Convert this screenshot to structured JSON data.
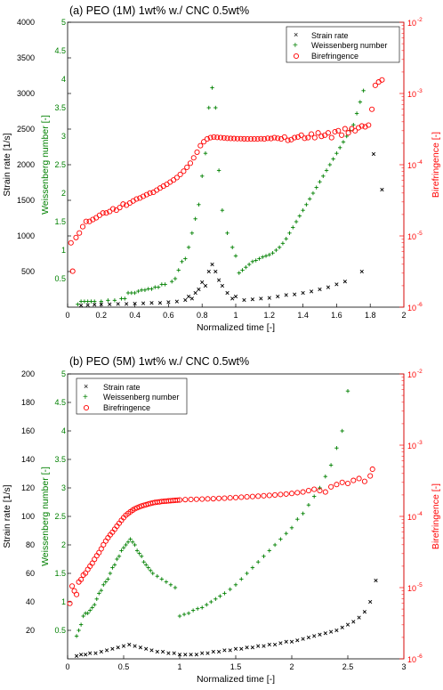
{
  "chart_data": [
    {
      "type": "scatter",
      "title": "(a) PEO (1M) 1wt% w./ CNC 0.5wt%",
      "xlabel": "Normalized time [-]",
      "ylabel_left": "Strain rate [1/s]",
      "ylabel_mid": "Weissenberg number [-]",
      "ylabel_right": "Birefringence [-]",
      "xlim": [
        0,
        2
      ],
      "ylim_left": [
        0,
        4000
      ],
      "ylim_mid": [
        0,
        5
      ],
      "ylim_right": [
        1e-06,
        0.01
      ],
      "right_scale": "log",
      "xticks": [
        "0",
        "0.2",
        "0.4",
        "0.6",
        "0.8",
        "1",
        "1.2",
        "1.4",
        "1.6",
        "1.8",
        "2"
      ],
      "yticks_left": [
        "500",
        "1000",
        "1500",
        "2000",
        "2500",
        "3000",
        "3500",
        "4000"
      ],
      "yticks_mid": [
        "0.5",
        "1",
        "1.5",
        "2",
        "2.5",
        "3",
        "3.5",
        "4",
        "4.5",
        "5"
      ],
      "yticks_right": [
        "10",
        "10",
        "10",
        "10",
        "10"
      ],
      "yticks_right_exp": [
        "-6",
        "-5",
        "-4",
        "-3",
        "-2"
      ],
      "legend_position": "top-right",
      "legend": [
        "Strain rate",
        "Weissenberg number",
        "Birefringence"
      ],
      "colors": {
        "strain": "#000000",
        "weissenberg": "#008000",
        "birefringence": "#ff0000"
      },
      "series": [
        {
          "name": "Strain rate",
          "marker": "x",
          "axis": "left",
          "x": [
            0.08,
            0.12,
            0.16,
            0.2,
            0.25,
            0.3,
            0.35,
            0.4,
            0.45,
            0.5,
            0.55,
            0.6,
            0.65,
            0.7,
            0.72,
            0.74,
            0.76,
            0.78,
            0.8,
            0.82,
            0.84,
            0.86,
            0.88,
            0.9,
            0.92,
            0.95,
            0.98,
            1.0,
            1.05,
            1.1,
            1.15,
            1.2,
            1.25,
            1.3,
            1.35,
            1.4,
            1.45,
            1.5,
            1.55,
            1.6,
            1.65,
            1.75,
            1.82,
            1.87
          ],
          "y": [
            25,
            30,
            35,
            40,
            40,
            45,
            45,
            50,
            55,
            60,
            60,
            70,
            80,
            100,
            150,
            120,
            200,
            250,
            350,
            300,
            500,
            600,
            500,
            380,
            300,
            200,
            120,
            150,
            100,
            110,
            120,
            130,
            150,
            170,
            180,
            200,
            220,
            250,
            280,
            320,
            360,
            500,
            2150,
            1650
          ]
        },
        {
          "name": "Weissenberg number",
          "marker": "+",
          "axis": "mid",
          "x": [
            0.06,
            0.08,
            0.1,
            0.12,
            0.14,
            0.16,
            0.2,
            0.24,
            0.28,
            0.32,
            0.34,
            0.36,
            0.38,
            0.4,
            0.42,
            0.44,
            0.46,
            0.48,
            0.5,
            0.52,
            0.54,
            0.56,
            0.58,
            0.62,
            0.64,
            0.66,
            0.68,
            0.7,
            0.72,
            0.74,
            0.76,
            0.78,
            0.8,
            0.82,
            0.84,
            0.86,
            0.88,
            0.9,
            0.92,
            0.95,
            0.98,
            1.0,
            1.02,
            1.04,
            1.06,
            1.08,
            1.1,
            1.12,
            1.14,
            1.16,
            1.18,
            1.2,
            1.22,
            1.24,
            1.26,
            1.28,
            1.3,
            1.32,
            1.34,
            1.36,
            1.38,
            1.4,
            1.42,
            1.44,
            1.46,
            1.48,
            1.5,
            1.52,
            1.54,
            1.56,
            1.58,
            1.6,
            1.62,
            1.64,
            1.66,
            1.68,
            1.7,
            1.72,
            1.74,
            1.76
          ],
          "y": [
            0.05,
            0.1,
            0.1,
            0.1,
            0.1,
            0.1,
            0.1,
            0.12,
            0.12,
            0.15,
            0.15,
            0.25,
            0.25,
            0.25,
            0.28,
            0.3,
            0.3,
            0.32,
            0.32,
            0.35,
            0.35,
            0.4,
            0.4,
            0.45,
            0.5,
            0.65,
            0.8,
            0.85,
            1.05,
            1.3,
            1.55,
            1.8,
            2.3,
            2.7,
            3.5,
            3.85,
            3.5,
            2.4,
            1.7,
            1.3,
            1.05,
            0.9,
            0.6,
            0.65,
            0.7,
            0.75,
            0.8,
            0.82,
            0.85,
            0.88,
            0.9,
            0.92,
            0.95,
            1.0,
            1.05,
            1.12,
            1.2,
            1.3,
            1.4,
            1.5,
            1.6,
            1.7,
            1.8,
            1.9,
            2.0,
            2.1,
            2.2,
            2.3,
            2.4,
            2.5,
            2.6,
            2.7,
            2.8,
            2.9,
            3.0,
            3.1,
            3.2,
            3.4,
            3.6,
            3.8
          ]
        },
        {
          "name": "Birefringence",
          "marker": "o",
          "axis": "right",
          "x": [
            0.02,
            0.03,
            0.05,
            0.07,
            0.09,
            0.11,
            0.13,
            0.15,
            0.17,
            0.19,
            0.21,
            0.23,
            0.25,
            0.27,
            0.29,
            0.31,
            0.33,
            0.35,
            0.37,
            0.39,
            0.41,
            0.43,
            0.45,
            0.47,
            0.49,
            0.51,
            0.53,
            0.55,
            0.57,
            0.59,
            0.61,
            0.63,
            0.65,
            0.67,
            0.69,
            0.71,
            0.73,
            0.75,
            0.77,
            0.79,
            0.81,
            0.83,
            0.85,
            0.87,
            0.89,
            0.91,
            0.93,
            0.95,
            0.97,
            0.99,
            1.01,
            1.03,
            1.05,
            1.07,
            1.09,
            1.11,
            1.13,
            1.15,
            1.17,
            1.19,
            1.21,
            1.23,
            1.25,
            1.27,
            1.29,
            1.31,
            1.33,
            1.35,
            1.37,
            1.39,
            1.41,
            1.43,
            1.45,
            1.47,
            1.49,
            1.51,
            1.53,
            1.55,
            1.57,
            1.59,
            1.61,
            1.63,
            1.65,
            1.67,
            1.69,
            1.71,
            1.73,
            1.75,
            1.77,
            1.79,
            1.81,
            1.83,
            1.85,
            1.87
          ],
          "y": [
            8e-06,
            3.2e-06,
            9.5e-06,
            1.1e-05,
            1.35e-05,
            1.6e-05,
            1.6e-05,
            1.7e-05,
            1.8e-05,
            1.95e-05,
            2.1e-05,
            2.1e-05,
            2.2e-05,
            2.4e-05,
            2.3e-05,
            2.5e-05,
            2.8e-05,
            2.7e-05,
            2.9e-05,
            3.1e-05,
            3.3e-05,
            3.4e-05,
            3.6e-05,
            3.8e-05,
            4e-05,
            4.1e-05,
            4.4e-05,
            4.7e-05,
            5e-05,
            5.3e-05,
            5.7e-05,
            6.1e-05,
            6.6e-05,
            7.3e-05,
            8.1e-05,
            9.2e-05,
            0.000105,
            0.000125,
            0.00015,
            0.000185,
            0.00021,
            0.00023,
            0.00024,
            0.000245,
            0.000242,
            0.00024,
            0.000238,
            0.000235,
            0.000234,
            0.000233,
            0.000232,
            0.000232,
            0.000231,
            0.00023,
            0.00023,
            0.00023,
            0.00023,
            0.000232,
            0.00023,
            0.000235,
            0.000233,
            0.00024,
            0.000235,
            0.00023,
            0.000245,
            0.00022,
            0.000225,
            0.00024,
            0.000245,
            0.00026,
            0.000235,
            0.00024,
            0.00027,
            0.00024,
            0.00028,
            0.00025,
            0.00026,
            0.00028,
            0.00024,
            0.00029,
            0.0003,
            0.00026,
            0.00032,
            0.00028,
            0.00032,
            0.0003,
            0.00033,
            0.00035,
            0.00034,
            0.00036,
            0.0006,
            0.0013,
            0.00145,
            0.00155
          ]
        }
      ]
    },
    {
      "type": "scatter",
      "title": "(b) PEO (5M) 1wt% w./ CNC 0.5wt%",
      "xlabel": "Normalized time [-]",
      "ylabel_left": "Strain rate [1/s]",
      "ylabel_mid": "Weissenberg number [-]",
      "ylabel_right": "Birefringence [-]",
      "xlim": [
        0,
        3
      ],
      "ylim_left": [
        0,
        200
      ],
      "ylim_mid": [
        0,
        5
      ],
      "ylim_right": [
        1e-06,
        0.01
      ],
      "right_scale": "log",
      "xticks": [
        "0",
        "0.5",
        "1",
        "1.5",
        "2",
        "2.5",
        "3"
      ],
      "yticks_left": [
        "20",
        "40",
        "60",
        "80",
        "100",
        "120",
        "140",
        "160",
        "180",
        "200"
      ],
      "yticks_mid": [
        "0.5",
        "1",
        "1.5",
        "2",
        "2.5",
        "3",
        "3.5",
        "4",
        "4.5",
        "5"
      ],
      "yticks_right": [
        "10",
        "10",
        "10",
        "10",
        "10"
      ],
      "yticks_right_exp": [
        "-6",
        "-5",
        "-4",
        "-3",
        "-2"
      ],
      "legend_position": "top-left",
      "legend": [
        "Strain rate",
        "Weissenberg number",
        "Birefringence"
      ],
      "colors": {
        "strain": "#000000",
        "weissenberg": "#008000",
        "birefringence": "#ff0000"
      },
      "series": [
        {
          "name": "Strain rate",
          "marker": "x",
          "axis": "left",
          "x": [
            0.08,
            0.12,
            0.16,
            0.2,
            0.25,
            0.3,
            0.35,
            0.4,
            0.45,
            0.5,
            0.55,
            0.6,
            0.65,
            0.7,
            0.75,
            0.8,
            0.85,
            0.9,
            0.95,
            1.0,
            1.05,
            1.1,
            1.15,
            1.2,
            1.25,
            1.3,
            1.35,
            1.4,
            1.45,
            1.5,
            1.55,
            1.6,
            1.65,
            1.7,
            1.75,
            1.8,
            1.85,
            1.9,
            1.95,
            2.0,
            2.05,
            2.1,
            2.15,
            2.2,
            2.25,
            2.3,
            2.35,
            2.4,
            2.45,
            2.5,
            2.55,
            2.6,
            2.65,
            2.7,
            2.75
          ],
          "y": [
            2,
            3,
            3,
            4,
            4,
            5,
            6,
            7,
            8,
            9,
            10,
            9,
            8,
            7,
            6,
            5,
            5,
            4,
            4,
            3,
            3,
            3,
            3,
            4,
            4,
            5,
            5,
            6,
            6,
            7,
            7,
            8,
            8,
            9,
            9,
            10,
            10,
            11,
            12,
            12,
            13,
            14,
            15,
            16,
            17,
            18,
            19,
            20,
            22,
            24,
            26,
            29,
            33,
            40,
            55
          ]
        },
        {
          "name": "Weissenberg number",
          "marker": "+",
          "axis": "mid",
          "x": [
            0.08,
            0.1,
            0.12,
            0.14,
            0.16,
            0.18,
            0.2,
            0.22,
            0.24,
            0.26,
            0.28,
            0.3,
            0.32,
            0.34,
            0.36,
            0.38,
            0.4,
            0.42,
            0.44,
            0.46,
            0.48,
            0.5,
            0.52,
            0.54,
            0.56,
            0.58,
            0.6,
            0.62,
            0.64,
            0.66,
            0.68,
            0.7,
            0.72,
            0.74,
            0.76,
            0.8,
            0.84,
            0.88,
            0.92,
            0.96,
            1.0,
            1.04,
            1.08,
            1.12,
            1.16,
            1.2,
            1.24,
            1.28,
            1.32,
            1.36,
            1.4,
            1.45,
            1.5,
            1.55,
            1.6,
            1.65,
            1.7,
            1.75,
            1.8,
            1.85,
            1.9,
            1.95,
            2.0,
            2.05,
            2.1,
            2.15,
            2.2,
            2.25,
            2.3,
            2.35,
            2.4,
            2.45,
            2.5
          ],
          "y": [
            0.4,
            0.5,
            0.6,
            0.75,
            0.8,
            0.8,
            0.85,
            0.9,
            0.95,
            1.05,
            1.15,
            1.2,
            1.3,
            1.35,
            1.4,
            1.5,
            1.6,
            1.65,
            1.75,
            1.8,
            1.9,
            1.95,
            2.0,
            2.05,
            2.1,
            2.05,
            2.0,
            1.9,
            1.85,
            1.8,
            1.7,
            1.65,
            1.6,
            1.55,
            1.5,
            1.45,
            1.4,
            1.35,
            1.3,
            1.25,
            0.75,
            0.78,
            0.8,
            0.85,
            0.88,
            0.9,
            0.95,
            1.0,
            1.05,
            1.1,
            1.15,
            1.22,
            1.3,
            1.4,
            1.5,
            1.6,
            1.7,
            1.8,
            1.9,
            2.0,
            2.1,
            2.2,
            2.3,
            2.45,
            2.55,
            2.7,
            2.85,
            3.0,
            3.2,
            3.4,
            3.7,
            4.0,
            4.7
          ]
        },
        {
          "name": "Birefringence",
          "marker": "o",
          "axis": "right",
          "x": [
            0.02,
            0.04,
            0.06,
            0.08,
            0.1,
            0.12,
            0.14,
            0.16,
            0.18,
            0.2,
            0.22,
            0.24,
            0.26,
            0.28,
            0.3,
            0.32,
            0.34,
            0.36,
            0.38,
            0.4,
            0.42,
            0.44,
            0.46,
            0.48,
            0.5,
            0.52,
            0.54,
            0.56,
            0.58,
            0.6,
            0.62,
            0.64,
            0.66,
            0.68,
            0.7,
            0.72,
            0.74,
            0.76,
            0.78,
            0.8,
            0.82,
            0.84,
            0.86,
            0.88,
            0.9,
            0.92,
            0.94,
            0.96,
            0.98,
            1.0,
            1.05,
            1.1,
            1.15,
            1.2,
            1.25,
            1.3,
            1.35,
            1.4,
            1.45,
            1.5,
            1.55,
            1.6,
            1.65,
            1.7,
            1.75,
            1.8,
            1.85,
            1.9,
            1.95,
            2.0,
            2.05,
            2.1,
            2.15,
            2.2,
            2.25,
            2.3,
            2.35,
            2.4,
            2.45,
            2.5,
            2.55,
            2.6,
            2.65,
            2.7,
            2.72
          ],
          "y": [
            6e-06,
            1.05e-05,
            9e-06,
            8e-06,
            1.2e-05,
            1.3e-05,
            1.5e-05,
            1.6e-05,
            1.8e-05,
            2e-05,
            2.2e-05,
            2.5e-05,
            2.8e-05,
            3.1e-05,
            3.5e-05,
            4e-05,
            4.5e-05,
            5e-05,
            5.5e-05,
            6e-05,
            6.6e-05,
            7.3e-05,
            8e-05,
            8.8e-05,
            9.6e-05,
            0.000104,
            0.00011,
            0.000116,
            0.000122,
            0.000128,
            0.000132,
            0.000136,
            0.00014,
            0.000143,
            0.000146,
            0.000149,
            0.000152,
            0.000155,
            0.000157,
            0.000159,
            0.00016,
            0.000162,
            0.000163,
            0.000164,
            0.000165,
            0.000166,
            0.000167,
            0.000168,
            0.000169,
            0.00017,
            0.000172,
            0.000173,
            0.000174,
            0.000175,
            0.000176,
            0.000177,
            0.000179,
            0.00018,
            0.000182,
            0.000184,
            0.000186,
            0.000188,
            0.00019,
            0.000192,
            0.000195,
            0.000197,
            0.0002,
            0.000203,
            0.000206,
            0.00021,
            0.000215,
            0.00022,
            0.00023,
            0.00024,
            0.00023,
            0.00022,
            0.00026,
            0.00028,
            0.0003,
            0.00029,
            0.00032,
            0.00034,
            0.00031,
            0.00037,
            0.00046
          ]
        }
      ]
    }
  ]
}
